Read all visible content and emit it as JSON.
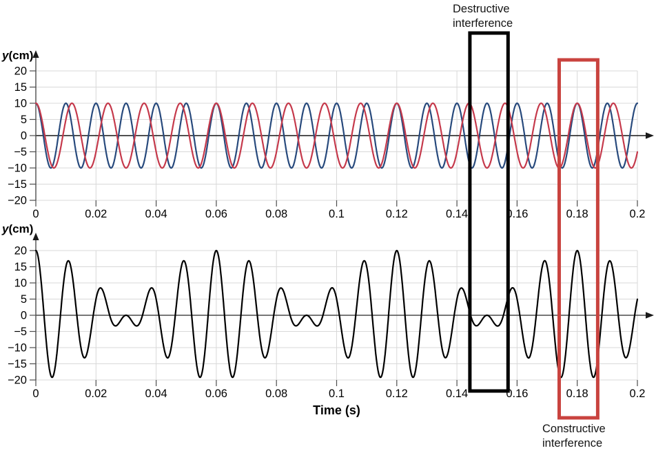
{
  "chart_data": [
    {
      "type": "line",
      "title": "",
      "xlabel": "",
      "ylabel_var": "y",
      "ylabel_unit": "(cm)",
      "xlim": [
        0,
        0.2
      ],
      "ylim": [
        -20,
        20
      ],
      "grid": true,
      "x_ticks": [
        "0",
        "0.02",
        "0.04",
        "0.06",
        "0.08",
        "0.1",
        "0.12",
        "0.14",
        "0.16",
        "0.18",
        "0.2"
      ],
      "y_ticks": [
        "20",
        "15",
        "10",
        "5",
        "0",
        "−5",
        "−10",
        "−15",
        "−20"
      ],
      "series": [
        {
          "name": "blue wave (higher frequency)",
          "color": "#27497c",
          "waveform": "cosine",
          "amplitude_cm": 10,
          "frequency_hz": 100,
          "phase_deg": 0
        },
        {
          "name": "red wave (lower frequency)",
          "color": "#c5394b",
          "waveform": "cosine",
          "amplitude_cm": 10,
          "frequency_hz": 83.33,
          "phase_deg": 0
        }
      ]
    },
    {
      "type": "line",
      "title": "",
      "xlabel": "Time (s)",
      "ylabel_var": "y",
      "ylabel_unit": "(cm)",
      "xlim": [
        0,
        0.2
      ],
      "ylim": [
        -20,
        20
      ],
      "grid": true,
      "x_ticks": [
        "0",
        "0.02",
        "0.04",
        "0.06",
        "0.08",
        "0.1",
        "0.12",
        "0.14",
        "0.16",
        "0.18",
        "0.2"
      ],
      "y_ticks": [
        "20",
        "15",
        "10",
        "5",
        "0",
        "−5",
        "−10",
        "−15",
        "−20"
      ],
      "series": [
        {
          "name": "resultant wave (superposition showing beats)",
          "color": "#000000",
          "waveform": "sum_of_cosines",
          "components": [
            {
              "amplitude_cm": 10,
              "frequency_hz": 100,
              "phase_deg": 0
            },
            {
              "amplitude_cm": 10,
              "frequency_hz": 83.33,
              "phase_deg": 0
            }
          ]
        }
      ]
    }
  ],
  "annotations": [
    {
      "label": "Destructive interference",
      "box_color": "#000000",
      "time_range_s": [
        0.1443,
        0.157
      ]
    },
    {
      "label": "Constructive interference",
      "box_color": "#c9433f",
      "time_range_s": [
        0.174,
        0.1868
      ]
    }
  ]
}
